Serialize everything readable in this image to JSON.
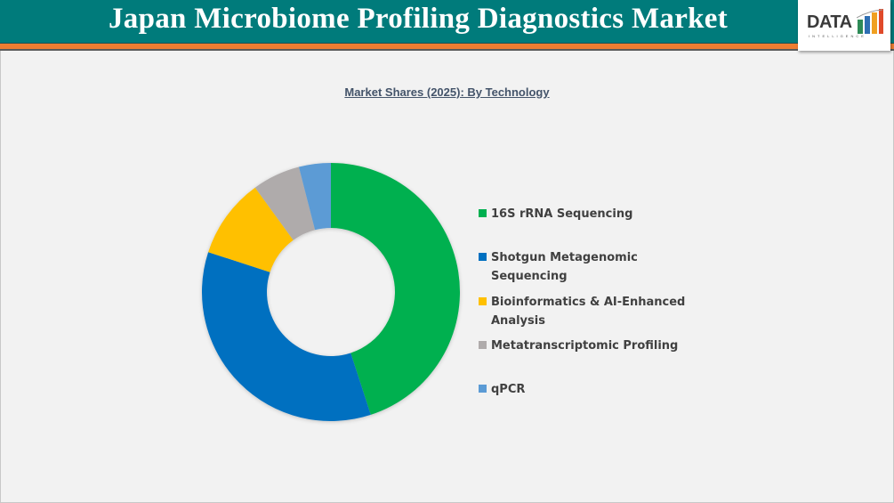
{
  "header": {
    "title": "Japan Microbiome Profiling Diagnostics Market",
    "logo": {
      "main": "DATA",
      "sub": "INTELLIGENCE"
    }
  },
  "chart_data": {
    "type": "pie",
    "variant": "donut",
    "title": "Market Shares (2025): By Technology",
    "categories": [
      "16S rRNA Sequencing",
      "Shotgun Metagenomic Sequencing",
      "Bioinformatics & AI-Enhanced Analysis",
      "Metatranscriptomic Profiling",
      "qPCR"
    ],
    "values": [
      45,
      35,
      10,
      6,
      4
    ],
    "colors": [
      "#00b050",
      "#0070c0",
      "#ffc000",
      "#afabab",
      "#5b9bd5"
    ],
    "unit": "%",
    "start_angle": "12 o'clock",
    "direction": "clockwise",
    "legend_position": "right",
    "data_labels": false
  },
  "legend": {
    "items": [
      {
        "label": "16S rRNA Sequencing",
        "color": "#00b050"
      },
      {
        "label": "Shotgun Metagenomic Sequencing",
        "color": "#0070c0"
      },
      {
        "label": "Bioinformatics & AI-Enhanced Analysis",
        "color": "#ffc000"
      },
      {
        "label": "Metatranscriptomic Profiling",
        "color": "#afabab"
      },
      {
        "label": "qPCR",
        "color": "#5b9bd5"
      }
    ]
  },
  "colors": {
    "header_bg": "#007b7b",
    "accent_band": "#ee7d31",
    "page_bg": "#f2f2f2",
    "chart_title": "#44546a"
  }
}
